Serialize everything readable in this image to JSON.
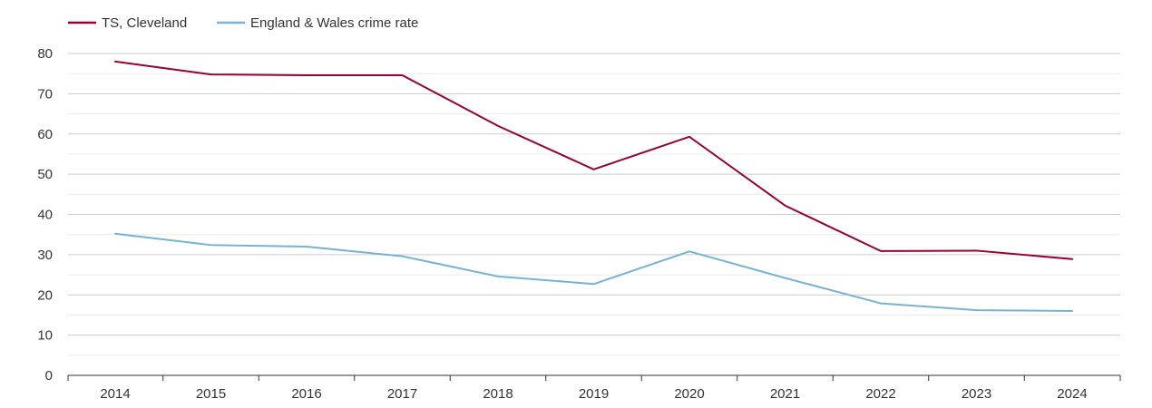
{
  "chart_data": {
    "type": "line",
    "title": "",
    "xlabel": "",
    "ylabel": "",
    "x": [
      "2014",
      "2015",
      "2016",
      "2017",
      "2018",
      "2019",
      "2020",
      "2021",
      "2022",
      "2023",
      "2024"
    ],
    "ylim": [
      0,
      80
    ],
    "yticks": [
      "0",
      "10",
      "20",
      "30",
      "40",
      "50",
      "60",
      "70",
      "80"
    ],
    "grid": true,
    "legend_position": "top-left",
    "series": [
      {
        "name": "TS, Cleveland",
        "color": "#990033",
        "values": [
          78,
          74.8,
          74.6,
          74.6,
          62,
          51.2,
          59.3,
          42.2,
          30.9,
          31,
          28.9
        ]
      },
      {
        "name": "England & Wales crime rate",
        "color": "#77b3d4",
        "values": [
          35.2,
          32.4,
          32,
          29.6,
          24.6,
          22.7,
          30.8,
          24.2,
          17.9,
          16.2,
          16
        ]
      }
    ]
  }
}
